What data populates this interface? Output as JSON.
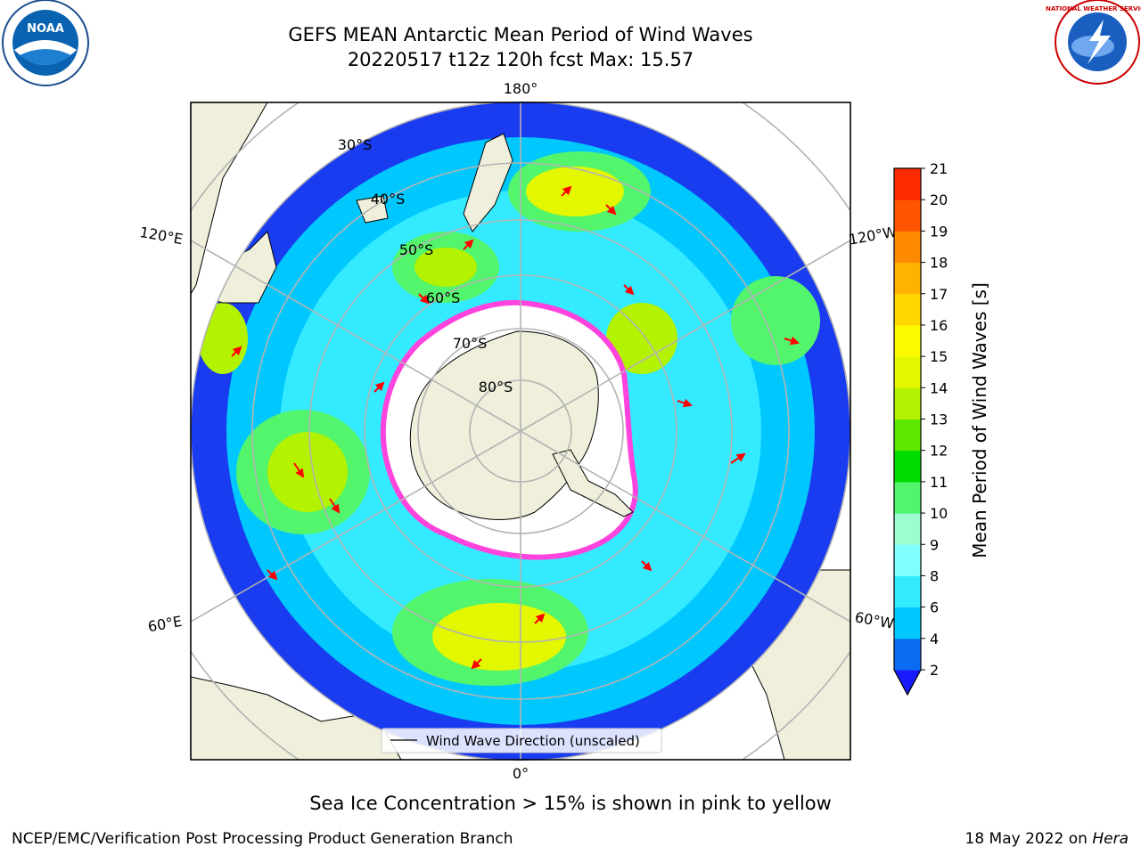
{
  "title": {
    "line1": "GEFS MEAN Antarctic Mean Period of Wind Waves",
    "line2": "20220517 t12z 120h fcst   Max: 15.57"
  },
  "logos": {
    "left": {
      "name": "noaa-logo",
      "text": "NOAA"
    },
    "right": {
      "name": "nws-logo",
      "text": "NATIONAL WEATHER SERVICE"
    }
  },
  "map": {
    "projection": "south-polar-stereographic",
    "lon_labels": {
      "top": "180°",
      "bottom": "0°",
      "left_upper": "120°E",
      "left_lower": "60°E",
      "right_upper": "120°W",
      "right_lower": "60°W"
    },
    "lat_labels": [
      "30°S",
      "40°S",
      "50°S",
      "60°S",
      "70°S",
      "80°S"
    ],
    "legend_label": "Wind Wave Direction (unscaled)"
  },
  "colorbar": {
    "label": "Mean Period of Wind Waves [s]",
    "ticks": [
      "2",
      "4",
      "6",
      "8",
      "9",
      "10",
      "11",
      "12",
      "13",
      "14",
      "15",
      "16",
      "17",
      "18",
      "19",
      "20",
      "21"
    ],
    "colors": [
      "#0a6cf2",
      "#00c8ff",
      "#33eaff",
      "#80ffff",
      "#9dfcd0",
      "#52f56c",
      "#00dc00",
      "#5ee800",
      "#b3f200",
      "#e2f700",
      "#fdfb00",
      "#ffd800",
      "#ffb200",
      "#ff8a00",
      "#ff5500",
      "#ff2a00",
      "#ff0000"
    ],
    "extend_color": "#1a1aff"
  },
  "note": "Sea Ice Concentration > 15% is shown in pink to yellow",
  "footer": {
    "left": "NCEP/EMC/Verification Post Processing Product Generation Branch",
    "right_prefix": "18 May 2022 on ",
    "right_italic": "Hera"
  }
}
